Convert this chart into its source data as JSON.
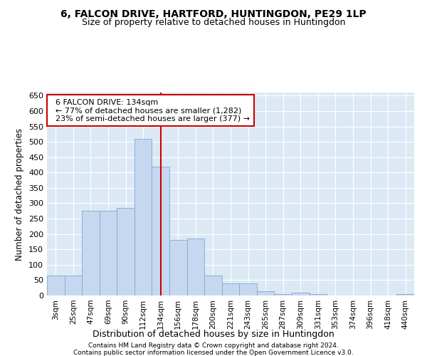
{
  "title": "6, FALCON DRIVE, HARTFORD, HUNTINGDON, PE29 1LP",
  "subtitle": "Size of property relative to detached houses in Huntingdon",
  "xlabel": "Distribution of detached houses by size in Huntingdon",
  "ylabel": "Number of detached properties",
  "footer1": "Contains HM Land Registry data © Crown copyright and database right 2024.",
  "footer2": "Contains public sector information licensed under the Open Government Licence v3.0.",
  "annotation_line1": "6 FALCON DRIVE: 134sqm",
  "annotation_line2": "← 77% of detached houses are smaller (1,282)",
  "annotation_line3": "23% of semi-detached houses are larger (377) →",
  "bar_color": "#c5d8f0",
  "bar_edge_color": "#7baad4",
  "line_color": "#cc0000",
  "background_color": "#dce9f5",
  "categories": [
    "3sqm",
    "25sqm",
    "47sqm",
    "69sqm",
    "90sqm",
    "112sqm",
    "134sqm",
    "156sqm",
    "178sqm",
    "200sqm",
    "221sqm",
    "243sqm",
    "265sqm",
    "287sqm",
    "309sqm",
    "331sqm",
    "353sqm",
    "374sqm",
    "396sqm",
    "418sqm",
    "440sqm"
  ],
  "values": [
    65,
    65,
    275,
    275,
    285,
    510,
    420,
    180,
    185,
    65,
    40,
    40,
    15,
    5,
    10,
    5,
    1,
    1,
    0,
    0,
    5
  ],
  "property_bar_index": 6,
  "ylim": [
    0,
    660
  ],
  "yticks": [
    0,
    50,
    100,
    150,
    200,
    250,
    300,
    350,
    400,
    450,
    500,
    550,
    600,
    650
  ]
}
